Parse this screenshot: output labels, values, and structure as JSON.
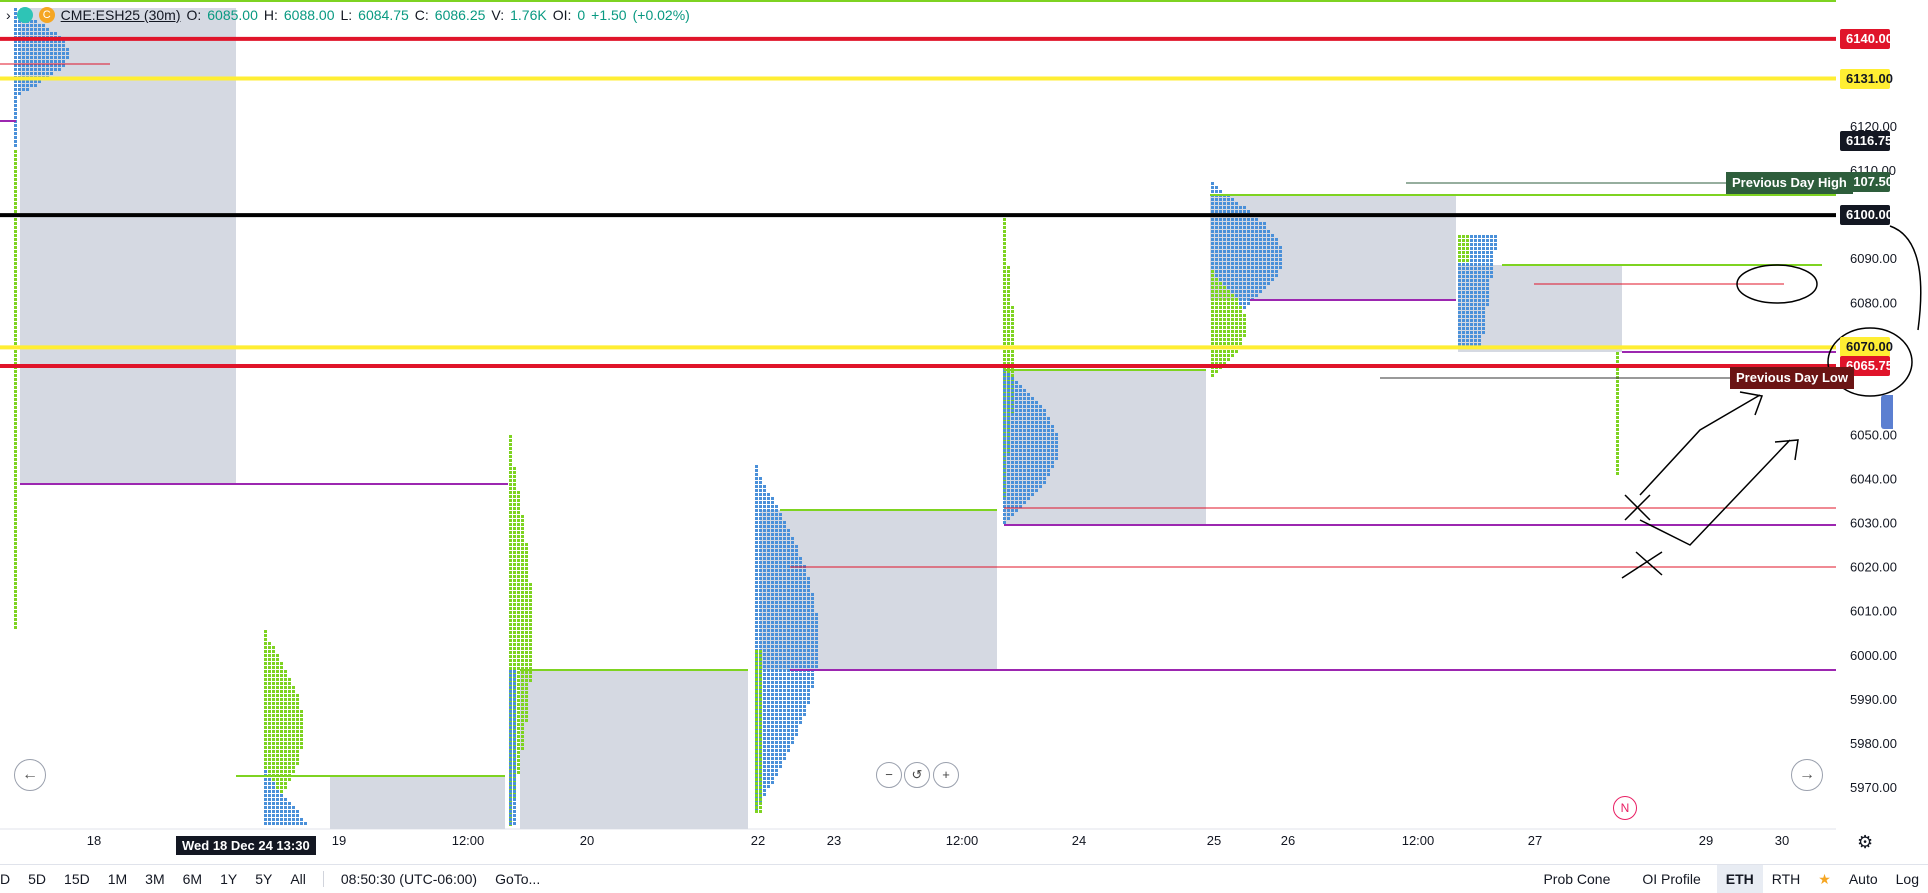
{
  "legend": {
    "symbol": "CME:ESH25 (30m)",
    "open_label": "O:",
    "open": "6085.00",
    "high_label": "H:",
    "high": "6088.00",
    "low_label": "L:",
    "low": "6084.75",
    "close_label": "C:",
    "close": "6086.25",
    "volume_label": "V:",
    "volume": "1.76K",
    "oi_label": "OI:",
    "oi": "0",
    "change": "+1.50",
    "change_pct": "(+0.02%)"
  },
  "colors": {
    "red_line": "#e0142a",
    "yellow_line": "#ffee33",
    "black_line": "#000000",
    "profile_blue": "#4a90d9",
    "profile_green": "#7ed321",
    "value_area": "#d5d9e2",
    "poc_red": "#ff4d4d",
    "naked_purple": "#9c27b0",
    "pdh_green": "#2e5e3c",
    "pdl_red": "#6b1414"
  },
  "price_tags": [
    {
      "label": "6140.00",
      "bg": "#e0142a",
      "fg": "#ffffff"
    },
    {
      "label": "6131.00",
      "bg": "#ffee33",
      "fg": "#131722"
    },
    {
      "label": "6116.75",
      "bg": "#131722",
      "fg": "#ffffff"
    },
    {
      "label": "6107.50",
      "bg": "#2e5e3c",
      "fg": "#ffffff"
    },
    {
      "label": "6100.00",
      "bg": "#131722",
      "fg": "#ffffff"
    },
    {
      "label": "6070.00",
      "bg": "#ffee33",
      "fg": "#131722"
    },
    {
      "label": "6065.75",
      "bg": "#e0142a",
      "fg": "#ffffff"
    }
  ],
  "labels": {
    "previous_day_high": "Previous Day High",
    "previous_day_low": "Previous Day Low",
    "crosshair_time": "Wed 18 Dec 24 13:30",
    "n_badge": "N"
  },
  "bottom_bar": {
    "ranges": [
      "5D",
      "15D",
      "1M",
      "3M",
      "6M",
      "1Y",
      "5Y",
      "All"
    ],
    "first_partial": "D",
    "clock": "08:50:30 (UTC-06:00)",
    "goto": "GoTo...",
    "right_items": [
      "Prob Cone",
      "OI Profile",
      "ETH",
      "RTH",
      "Auto",
      "Log"
    ],
    "active": "ETH"
  },
  "icons": {
    "left_arrow": "arrow-left-icon",
    "right_arrow": "arrow-right-icon",
    "zoom_out": "zoom-out-icon",
    "reset": "reset-icon",
    "zoom_in": "zoom-in-icon",
    "settings": "gear-icon",
    "star": "star-icon"
  },
  "chart_data": {
    "type": "market_profile",
    "y_axis_ticks": [
      6120,
      6110,
      6090,
      6080,
      6050,
      6040,
      6030,
      6020,
      6010,
      6000,
      5990,
      5980,
      5970
    ],
    "x_axis_ticks": [
      "18",
      "19",
      "12:00",
      "20",
      "22",
      "23",
      "12:00",
      "24",
      "25",
      "26",
      "12:00",
      "27",
      "29",
      "30"
    ],
    "ylim": [
      5962,
      6147
    ],
    "horizontal_levels": [
      {
        "price": 6140.0,
        "style": "red-thick"
      },
      {
        "price": 6131.0,
        "style": "yellow-thick"
      },
      {
        "price": 6100.0,
        "style": "black-thick"
      },
      {
        "price": 6070.0,
        "style": "yellow-thick"
      },
      {
        "price": 6065.75,
        "style": "red-thick"
      }
    ],
    "previous_day_high": 6107.5,
    "previous_day_low": 6065.75,
    "last_price": 6116.75
  }
}
